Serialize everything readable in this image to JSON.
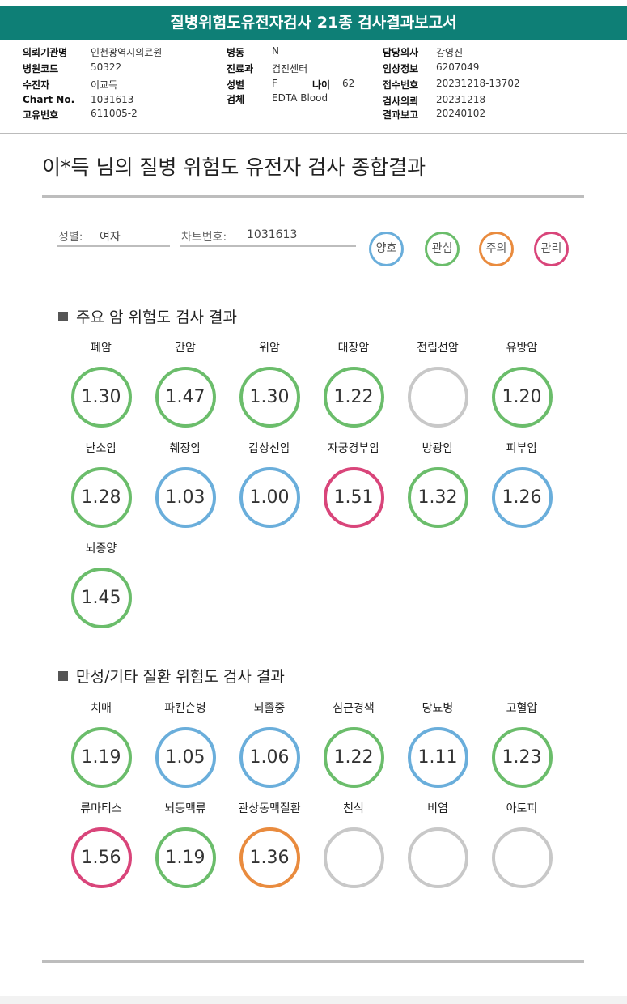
{
  "colors": {
    "header_bg": "#0e7f76",
    "good": "#6aaedb",
    "interest": "#6bbd6b",
    "caution": "#e98b3e",
    "manage": "#d9457a",
    "none": "#c8c8c8"
  },
  "header": {
    "title": "질병위험도유전자검사 21종 검사결과보고서"
  },
  "info": {
    "institution_label": "의뢰기관명",
    "institution": "인천광역시의료원",
    "hospital_code_label": "병원코드",
    "hospital_code": "50322",
    "patient_label": "수진자",
    "patient": "이교득",
    "chart_no_label": "Chart No.",
    "chart_no": "1031613",
    "unique_no_label": "고유번호",
    "unique_no": "611005-2",
    "ward_label": "병동",
    "ward": "N",
    "dept_label": "진료과",
    "dept": "검진센터",
    "sex_label": "성별",
    "sex": "F",
    "age_label": "나이",
    "age": "62",
    "specimen_label": "검체",
    "specimen": "EDTA Blood",
    "doctor_label": "담당의사",
    "doctor": "강영진",
    "clinical_label": "임상정보",
    "clinical": "6207049",
    "receipt_label": "접수번호",
    "receipt": "20231218-13702",
    "request_label": "검사의뢰",
    "request": "20231218",
    "report_label": "결과보고",
    "report": "20240102"
  },
  "summary": {
    "title": "이*득 님의 질병 위험도 유전자 검사 종합결과",
    "sex_label": "성별:",
    "sex_value": "여자",
    "chart_label": "차트번호:",
    "chart_value": "1031613"
  },
  "legend": [
    {
      "label": "양호",
      "status": "good"
    },
    {
      "label": "관심",
      "status": "interest"
    },
    {
      "label": "주의",
      "status": "caution"
    },
    {
      "label": "관리",
      "status": "manage"
    }
  ],
  "cancer": {
    "title": "주요 암 위험도 검사 결과",
    "items": [
      {
        "name": "폐암",
        "value": "1.30",
        "status": "interest"
      },
      {
        "name": "간암",
        "value": "1.47",
        "status": "interest"
      },
      {
        "name": "위암",
        "value": "1.30",
        "status": "interest"
      },
      {
        "name": "대장암",
        "value": "1.22",
        "status": "interest"
      },
      {
        "name": "전립선암",
        "value": "",
        "status": "none"
      },
      {
        "name": "유방암",
        "value": "1.20",
        "status": "interest"
      },
      {
        "name": "난소암",
        "value": "1.28",
        "status": "interest"
      },
      {
        "name": "췌장암",
        "value": "1.03",
        "status": "good"
      },
      {
        "name": "갑상선암",
        "value": "1.00",
        "status": "good"
      },
      {
        "name": "자궁경부암",
        "value": "1.51",
        "status": "manage"
      },
      {
        "name": "방광암",
        "value": "1.32",
        "status": "interest"
      },
      {
        "name": "피부암",
        "value": "1.26",
        "status": "good"
      },
      {
        "name": "뇌종양",
        "value": "1.45",
        "status": "interest"
      }
    ]
  },
  "chronic": {
    "title": "만성/기타 질환 위험도 검사 결과",
    "items": [
      {
        "name": "치매",
        "value": "1.19",
        "status": "interest"
      },
      {
        "name": "파킨슨병",
        "value": "1.05",
        "status": "good"
      },
      {
        "name": "뇌졸중",
        "value": "1.06",
        "status": "good"
      },
      {
        "name": "심근경색",
        "value": "1.22",
        "status": "interest"
      },
      {
        "name": "당뇨병",
        "value": "1.11",
        "status": "good"
      },
      {
        "name": "고혈압",
        "value": "1.23",
        "status": "interest"
      },
      {
        "name": "류마티스",
        "value": "1.56",
        "status": "manage"
      },
      {
        "name": "뇌동맥류",
        "value": "1.19",
        "status": "interest"
      },
      {
        "name": "관상동맥질환",
        "value": "1.36",
        "status": "caution"
      },
      {
        "name": "천식",
        "value": "",
        "status": "none"
      },
      {
        "name": "비염",
        "value": "",
        "status": "none"
      },
      {
        "name": "아토피",
        "value": "",
        "status": "none"
      }
    ]
  }
}
